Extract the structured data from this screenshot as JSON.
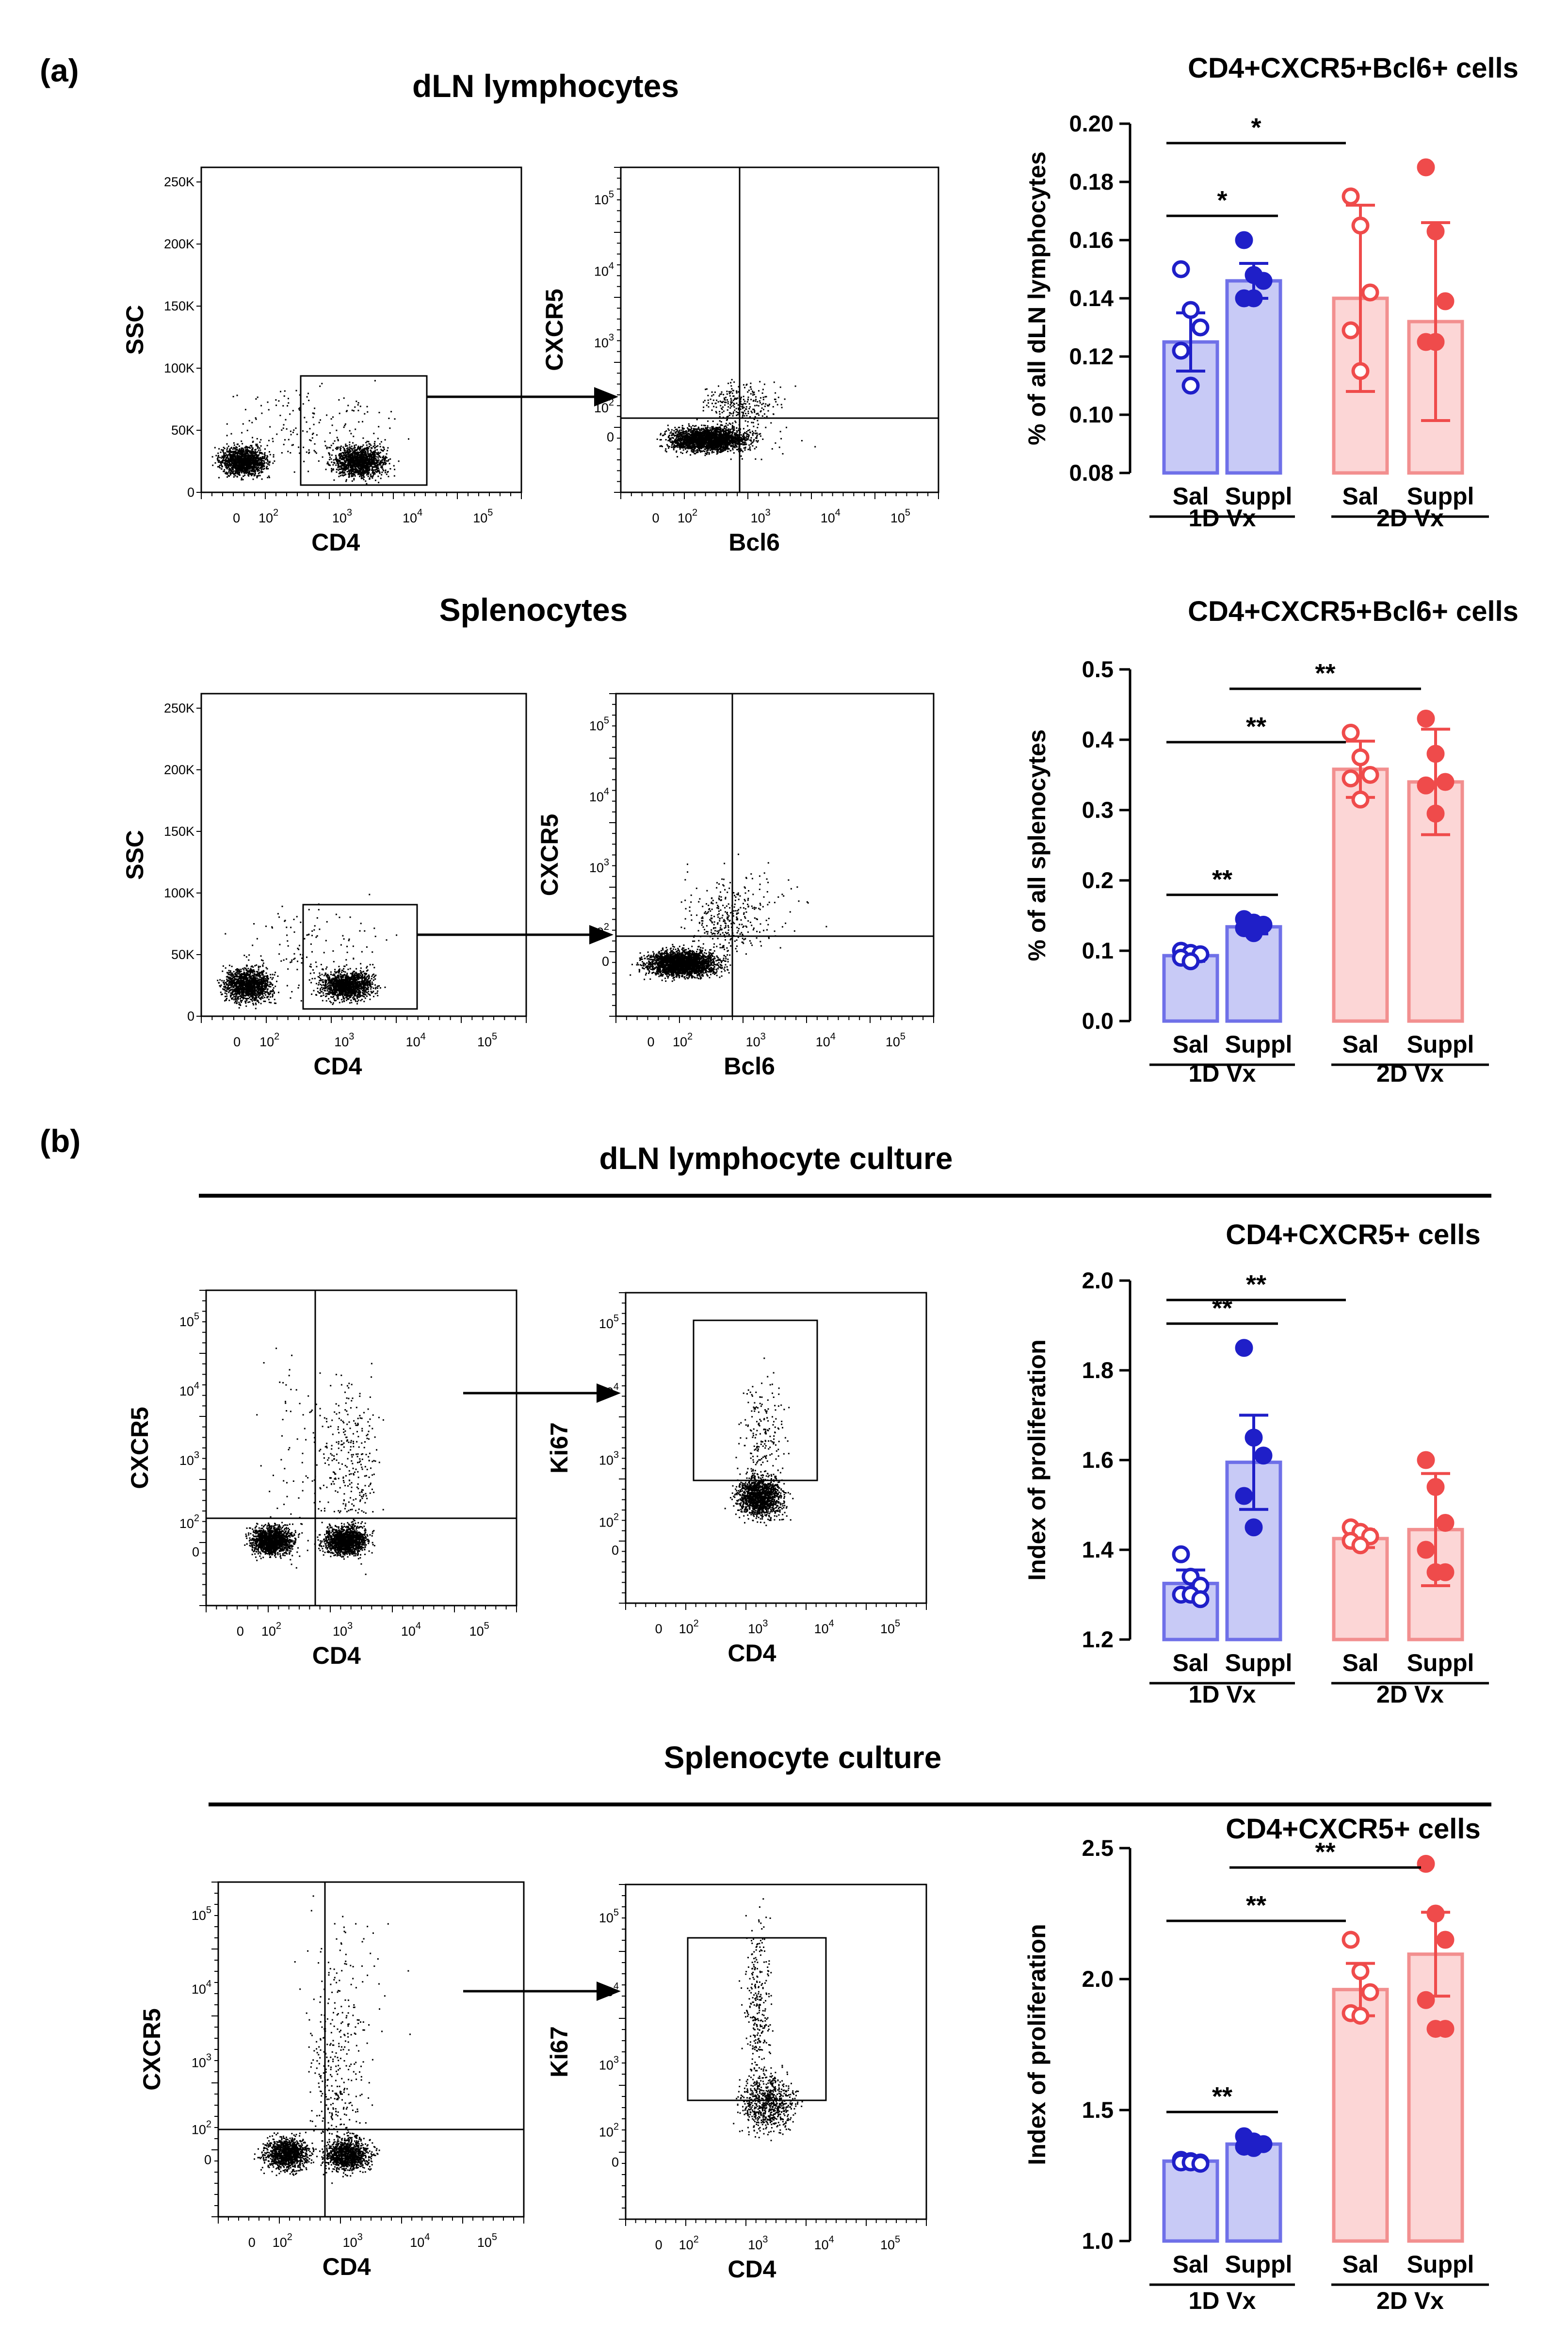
{
  "panel_labels": {
    "a": "(a)",
    "b": "(b)"
  },
  "headings": {
    "dln_lymphocytes": "dLN lymphocytes",
    "splenocytes": "Splenocytes",
    "dln_culture": "dLN lymphocyte culture",
    "spleno_culture": "Splenocyte culture"
  },
  "flow_plots": {
    "y_ticks_ssc": [
      "250K",
      "200K",
      "150K",
      "100K",
      "50K",
      "0"
    ],
    "log_ticks_exp": [
      "5",
      "4",
      "3",
      "2"
    ],
    "log_base": "10",
    "zero": "0",
    "labels": {
      "ssc": "SSC",
      "cd4": "CD4",
      "cxcr5": "CXCR5",
      "bcl6": "Bcl6",
      "ki67": "Ki67"
    }
  },
  "colors": {
    "sal_1d": "#1f1fc8",
    "suppl_1d": "#1f1fc8",
    "bar_1d_fill": "#c8caf6",
    "bar_1d_stroke": "#6f70e8",
    "sal_2d": "#ef4b4b",
    "bar_2d_fill": "#fcd6d6",
    "bar_2d_stroke": "#f28f8f"
  },
  "chart_data": [
    {
      "type": "bar",
      "title": "CD4+CXCR5+Bcl6+ cells",
      "ylabel": "% of all dLN lymphocytes",
      "ylim": [
        0.08,
        0.2
      ],
      "yticks": [
        "0.08",
        "0.10",
        "0.12",
        "0.14",
        "0.16",
        "0.18",
        "0.20"
      ],
      "categories": [
        "Sal",
        "Suppl",
        "Sal",
        "Suppl"
      ],
      "groups": [
        "1D Vx",
        "2D Vx"
      ],
      "means": [
        0.125,
        0.146,
        0.14,
        0.132
      ],
      "errors": [
        0.01,
        0.006,
        0.032,
        0.034
      ],
      "points": [
        [
          0.15,
          0.136,
          0.13,
          0.122,
          0.11
        ],
        [
          0.16,
          0.148,
          0.146,
          0.14,
          0.14
        ],
        [
          0.175,
          0.165,
          0.142,
          0.129,
          0.115
        ],
        [
          0.185,
          0.163,
          0.139,
          0.125,
          0.125
        ]
      ],
      "significance": [
        {
          "from": 0,
          "to": 1,
          "label": "*"
        },
        {
          "from": 0,
          "to": 2,
          "label": "*"
        }
      ]
    },
    {
      "type": "bar",
      "title": "CD4+CXCR5+Bcl6+ cells",
      "ylabel": "% of all splenocytes",
      "ylim": [
        0.0,
        0.5
      ],
      "yticks": [
        "0.0",
        "0.1",
        "0.2",
        "0.3",
        "0.4",
        "0.5"
      ],
      "categories": [
        "Sal",
        "Suppl",
        "Sal",
        "Suppl"
      ],
      "groups": [
        "1D Vx",
        "2D Vx"
      ],
      "means": [
        0.093,
        0.134,
        0.358,
        0.34
      ],
      "errors": [
        0.008,
        0.01,
        0.04,
        0.075
      ],
      "points": [
        [
          0.1,
          0.097,
          0.095,
          0.09,
          0.085
        ],
        [
          0.145,
          0.14,
          0.137,
          0.132,
          0.125
        ],
        [
          0.41,
          0.375,
          0.35,
          0.345,
          0.315
        ],
        [
          0.43,
          0.38,
          0.34,
          0.335,
          0.295
        ]
      ],
      "significance": [
        {
          "from": 0,
          "to": 1,
          "label": "**"
        },
        {
          "from": 0,
          "to": 2,
          "label": "**"
        },
        {
          "from": 1,
          "to": 3,
          "label": "**"
        }
      ]
    },
    {
      "type": "bar",
      "title": "CD4+CXCR5+ cells",
      "ylabel": "Index of proliferation",
      "ylim": [
        1.2,
        2.0
      ],
      "yticks": [
        "1.2",
        "1.4",
        "1.6",
        "1.8",
        "2.0"
      ],
      "categories": [
        "Sal",
        "Suppl",
        "Sal",
        "Suppl"
      ],
      "groups": [
        "1D Vx",
        "2D Vx"
      ],
      "means": [
        1.325,
        1.595,
        1.425,
        1.445
      ],
      "errors": [
        0.03,
        0.105,
        0.02,
        0.125
      ],
      "points": [
        [
          1.39,
          1.34,
          1.32,
          1.3,
          1.3,
          1.29
        ],
        [
          1.85,
          1.65,
          1.61,
          1.52,
          1.45
        ],
        [
          1.45,
          1.44,
          1.43,
          1.42,
          1.41
        ],
        [
          1.6,
          1.54,
          1.46,
          1.4,
          1.35,
          1.35
        ]
      ],
      "significance": [
        {
          "from": 0,
          "to": 1,
          "label": "**"
        },
        {
          "from": 0,
          "to": 2,
          "label": "**"
        }
      ]
    },
    {
      "type": "bar",
      "title": "CD4+CXCR5+ cells",
      "ylabel": "Index of proliferation",
      "ylim": [
        1.0,
        2.5
      ],
      "yticks": [
        "1.0",
        "1.5",
        "2.0",
        "2.5"
      ],
      "categories": [
        "Sal",
        "Suppl",
        "Sal",
        "Suppl"
      ],
      "groups": [
        "1D Vx",
        "2D Vx"
      ],
      "means": [
        1.305,
        1.37,
        1.96,
        2.095
      ],
      "errors": [
        0.012,
        0.02,
        0.1,
        0.16
      ],
      "points": [
        [
          1.31,
          1.305,
          1.3,
          1.3,
          1.3,
          1.295
        ],
        [
          1.4,
          1.38,
          1.37,
          1.36,
          1.355
        ],
        [
          2.15,
          2.03,
          1.95,
          1.87,
          1.86
        ],
        [
          2.44,
          2.25,
          2.15,
          1.92,
          1.81,
          1.81
        ]
      ],
      "significance": [
        {
          "from": 0,
          "to": 1,
          "label": "**"
        },
        {
          "from": 0,
          "to": 2,
          "label": "**"
        },
        {
          "from": 1,
          "to": 3,
          "label": "**"
        }
      ]
    }
  ]
}
